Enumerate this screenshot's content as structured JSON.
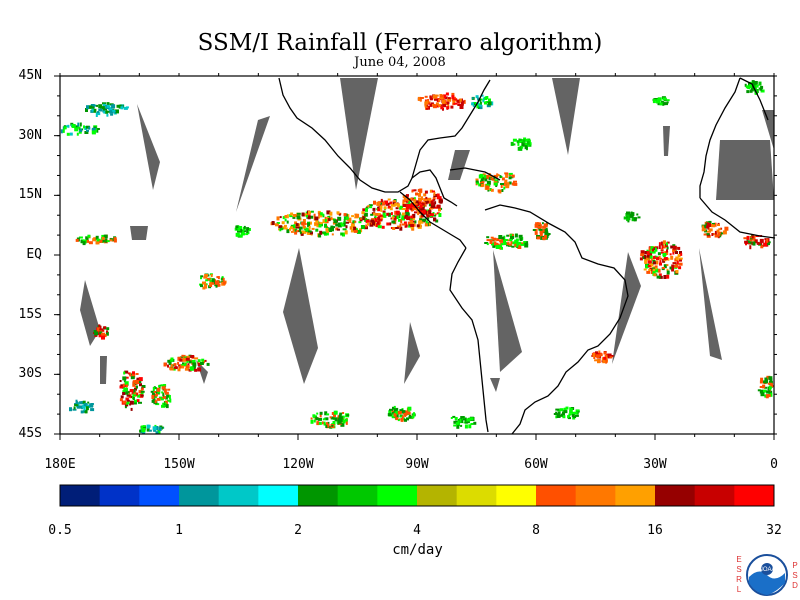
{
  "title": "SSM/I Rainfall (Ferraro algorithm)",
  "date": "June 04, 2008",
  "map": {
    "lat_labels": [
      "45N",
      "30N",
      "15N",
      "EQ",
      "15S",
      "30S",
      "45S"
    ],
    "lat_values": [
      45,
      30,
      15,
      0,
      -15,
      -30,
      -45
    ],
    "lon_labels": [
      "180E",
      "150W",
      "120W",
      "90W",
      "60W",
      "30W",
      "0"
    ],
    "lon_values": [
      -180,
      -150,
      -120,
      -90,
      -60,
      -30,
      0
    ],
    "extent": {
      "lon": [
        -180,
        0
      ],
      "lat": [
        -45,
        45
      ]
    },
    "swath_gap_color": "#646464",
    "coastline_color": "#000000"
  },
  "colorbar": {
    "tick_labels": [
      "0.5",
      "1",
      "2",
      "4",
      "8",
      "16",
      "32"
    ],
    "units": "cm/day",
    "colors": [
      "#001e78",
      "#0032c8",
      "#0050ff",
      "#00969c",
      "#00c8c8",
      "#00ffff",
      "#009600",
      "#00c800",
      "#00ff00",
      "#b4b400",
      "#dcdc00",
      "#ffff00",
      "#ff5000",
      "#ff7800",
      "#ffa000",
      "#960000",
      "#c80000",
      "#ff0000"
    ]
  },
  "logo": {
    "left_letters": [
      "E",
      "S",
      "R",
      "L"
    ],
    "right_letters": [
      "P",
      "S",
      "D"
    ],
    "text": "NOAA"
  }
}
